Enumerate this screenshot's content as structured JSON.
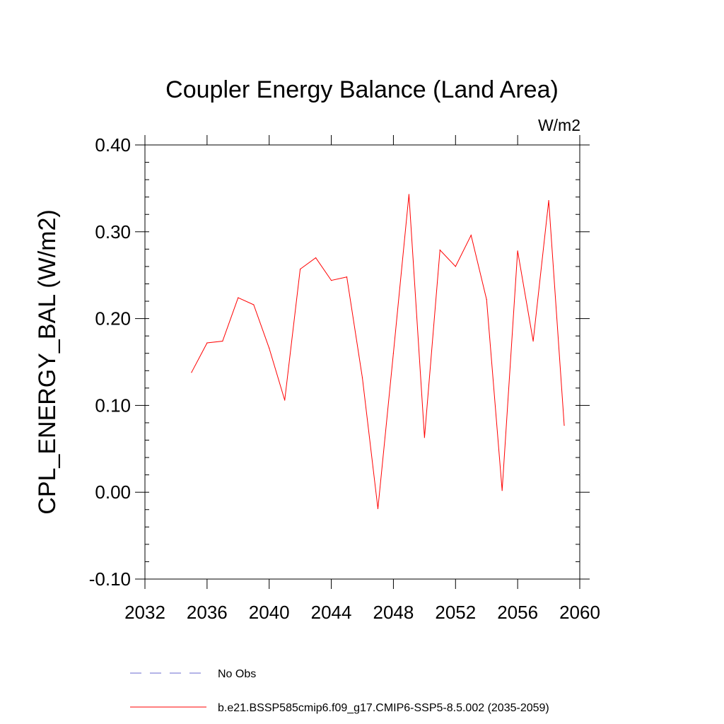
{
  "chart_data": {
    "type": "line",
    "title": "Coupler Energy Balance (Land Area)",
    "units": "W/m2",
    "ylabel": "CPL_ENERGY_BAL  (W/m2)",
    "xlabel": "",
    "xlim": [
      2032,
      2060
    ],
    "ylim": [
      -0.1,
      0.4
    ],
    "x_ticks": [
      2032,
      2036,
      2040,
      2044,
      2048,
      2052,
      2056,
      2060
    ],
    "x_tick_labels": [
      "2032",
      "2036",
      "2040",
      "2044",
      "2048",
      "2052",
      "2056",
      "2060"
    ],
    "y_ticks": [
      -0.1,
      0.0,
      0.1,
      0.2,
      0.3,
      0.4
    ],
    "y_tick_labels": [
      "-0.10",
      "0.00",
      "0.10",
      "0.20",
      "0.30",
      "0.40"
    ],
    "grid": false,
    "legend_placement": "bottom",
    "series": [
      {
        "name": "b.e21.BSSP585cmip6.f09_g17.CMIP6-SSP5-8.5.002 (2035-2059)",
        "color": "#ff0000",
        "style": "solid",
        "x": [
          2035,
          2036,
          2037,
          2038,
          2039,
          2040,
          2041,
          2042,
          2043,
          2044,
          2045,
          2046,
          2047,
          2048,
          2049,
          2050,
          2051,
          2052,
          2053,
          2054,
          2055,
          2056,
          2057,
          2058,
          2059
        ],
        "y": [
          0.138,
          0.172,
          0.174,
          0.224,
          0.216,
          0.166,
          0.106,
          0.257,
          0.27,
          0.244,
          0.248,
          0.132,
          -0.019,
          0.16,
          0.343,
          0.063,
          0.279,
          0.26,
          0.296,
          0.222,
          0.002,
          0.278,
          0.174,
          0.336,
          0.077
        ]
      }
    ],
    "legend": [
      {
        "label": "No Obs",
        "color": "#6a6ad0",
        "style": "dashed"
      },
      {
        "label": "b.e21.BSSP585cmip6.f09_g17.CMIP6-SSP5-8.5.002 (2035-2059)",
        "color": "#ff0000",
        "style": "solid"
      }
    ]
  }
}
